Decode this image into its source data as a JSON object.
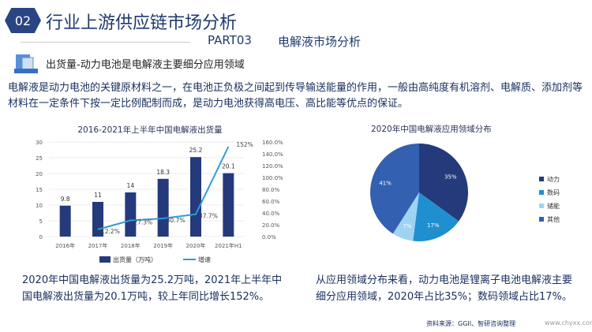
{
  "header": {
    "number": "02",
    "title": "行业上游供应链市场分析",
    "part": "PART03",
    "section": "电解液市场分析"
  },
  "subtitle": "出货量-动力电池是电解液主要细分应用领域",
  "intro": "电解液是动力电池的关键原材料之一，在电池正负极之间起到传导输送能量的作用，一般由高纯度有机溶剂、电解质、添加剂等材料在一定条件下按一定比例配制而成，是动力电池获得高电压、高比能等优点的保证。",
  "chart_data": [
    {
      "type": "bar",
      "title": "2016-2021年上半年中国电解液出货量",
      "categories": [
        "2016年",
        "2017年",
        "2018年",
        "2019年",
        "2020年",
        "2021年H1"
      ],
      "series": [
        {
          "name": "出货量（万吨）",
          "type": "bar",
          "values": [
            9.8,
            11,
            14,
            18.3,
            25.2,
            20.1
          ],
          "labels": [
            "9.8",
            "11",
            "14",
            "18.3",
            "25.2",
            "20.1"
          ],
          "axis": "left",
          "color": "#243a7b"
        },
        {
          "name": "增速",
          "type": "line",
          "values": [
            null,
            12.2,
            27.3,
            30.7,
            37.7,
            152
          ],
          "labels": [
            "",
            "12.2%",
            "27.3%",
            "30.7%",
            "37.7%",
            "152%"
          ],
          "axis": "right",
          "color": "#2e9bd6"
        }
      ],
      "ylim": [
        0,
        30
      ],
      "yticks": [
        "0",
        "5",
        "10",
        "15",
        "20",
        "25",
        "30"
      ],
      "y2lim": [
        0,
        160
      ],
      "y2ticks": [
        "0.0%",
        "20.0%",
        "40.0%",
        "60.0%",
        "80.0%",
        "100.0%",
        "120.0%",
        "140.0%",
        "160.0%"
      ],
      "grid": true,
      "legend": "bottom"
    },
    {
      "type": "pie",
      "title": "2020年中国电解液应用领域分布",
      "slices": [
        {
          "name": "动力",
          "value": 35,
          "label": "35%",
          "color": "#243a7b"
        },
        {
          "name": "数码",
          "value": 17,
          "label": "17%",
          "color": "#1f8fd0"
        },
        {
          "name": "储能",
          "value": 7,
          "label": "7%",
          "color": "#9fd3f2"
        },
        {
          "name": "其他",
          "value": 41,
          "label": "41%",
          "color": "#3360b0"
        }
      ],
      "legend": "right"
    }
  ],
  "text_left": "2020年中国电解液出货量为25.2万吨，2021年上半年中国电解液出货量为20.1万吨，较上年同比增长152%。",
  "text_right": "从应用领域分布来看，动力电池是锂离子电池电解液主要细分应用领域，2020年占比35%；数码领域占比17%。",
  "source": "资料来源：GGII、智研咨询整理",
  "website": "www.chyxx.com"
}
